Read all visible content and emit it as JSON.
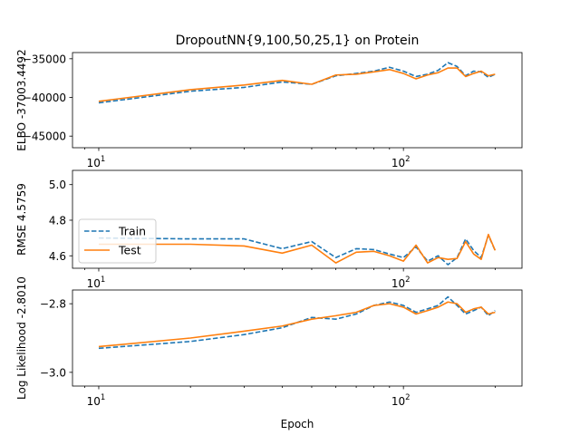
{
  "chart_data": {
    "type": "line",
    "title": "DropoutNN{9,100,50,25,1} on Protein",
    "xlabel": "Epoch",
    "xscale": "log",
    "xlim": [
      8.2,
      245
    ],
    "xticks": [
      {
        "value": 10,
        "base": "10",
        "exp": "1"
      },
      {
        "value": 100,
        "base": "10",
        "exp": "2"
      }
    ],
    "legend": {
      "location": "lower-left",
      "panel": 1,
      "entries": [
        "Train",
        "Test"
      ]
    },
    "series_styles": [
      {
        "name": "Train",
        "color": "#1f77b4",
        "dash": "dashed"
      },
      {
        "name": "Test",
        "color": "#ff7f0e",
        "dash": "solid"
      }
    ],
    "panels": [
      {
        "ylabel": "ELBO -37003.4492",
        "ylim": [
          -46500,
          -34200
        ],
        "yticks": [
          {
            "value": -35000,
            "label": "−35000"
          },
          {
            "value": -40000,
            "label": "−40000"
          },
          {
            "value": -45000,
            "label": "−45000"
          }
        ],
        "x": [
          10,
          20,
          30,
          40,
          50,
          60,
          70,
          80,
          90,
          100,
          110,
          120,
          130,
          140,
          150,
          160,
          170,
          180,
          190,
          200
        ],
        "series": [
          {
            "name": "Train",
            "values": [
              -40700,
              -39200,
              -38700,
              -38000,
              -38300,
              -37200,
              -36900,
              -36600,
              -36100,
              -36600,
              -37300,
              -37000,
              -36500,
              -35500,
              -36000,
              -37200,
              -36600,
              -36700,
              -37400,
              -37000
            ]
          },
          {
            "name": "Test",
            "values": [
              -40500,
              -39000,
              -38400,
              -37800,
              -38300,
              -37100,
              -37000,
              -36700,
              -36400,
              -36900,
              -37600,
              -37100,
              -36800,
              -36200,
              -36200,
              -37300,
              -36900,
              -36600,
              -37200,
              -37000
            ]
          }
        ]
      },
      {
        "ylabel": "RMSE 4.5759",
        "ylim": [
          4.53,
          5.08
        ],
        "yticks": [
          {
            "value": 5.0,
            "label": "5.0"
          },
          {
            "value": 4.8,
            "label": "4.8"
          },
          {
            "value": 4.6,
            "label": "4.6"
          }
        ],
        "x": [
          10,
          20,
          30,
          40,
          50,
          60,
          70,
          80,
          90,
          100,
          110,
          120,
          130,
          140,
          150,
          160,
          170,
          180,
          190,
          200
        ],
        "series": [
          {
            "name": "Train",
            "values": [
              4.7,
              4.695,
              4.695,
              4.64,
              4.68,
              4.59,
              4.64,
              4.635,
              4.61,
              4.59,
              4.65,
              4.57,
              4.6,
              4.55,
              4.59,
              4.695,
              4.63,
              4.59,
              4.715,
              4.63
            ]
          },
          {
            "name": "Test",
            "values": [
              4.665,
              4.665,
              4.655,
              4.615,
              4.66,
              4.56,
              4.62,
              4.625,
              4.6,
              4.57,
              4.66,
              4.56,
              4.59,
              4.58,
              4.585,
              4.68,
              4.61,
              4.58,
              4.72,
              4.63
            ]
          }
        ]
      },
      {
        "ylabel": "Log Likelihood -2.8010",
        "ylim": [
          -3.04,
          -2.76
        ],
        "yticks": [
          {
            "value": -2.8,
            "label": "−2.8"
          },
          {
            "value": -3.0,
            "label": "−3.0"
          }
        ],
        "x": [
          10,
          20,
          30,
          40,
          50,
          60,
          70,
          80,
          90,
          100,
          110,
          120,
          130,
          140,
          150,
          160,
          170,
          180,
          190,
          200
        ],
        "series": [
          {
            "name": "Train",
            "values": [
              -2.93,
              -2.91,
              -2.89,
              -2.87,
              -2.84,
              -2.845,
              -2.83,
              -2.805,
              -2.795,
              -2.805,
              -2.825,
              -2.815,
              -2.805,
              -2.78,
              -2.805,
              -2.83,
              -2.82,
              -2.81,
              -2.835,
              -2.82
            ]
          },
          {
            "name": "Test",
            "values": [
              -2.925,
              -2.9,
              -2.88,
              -2.865,
              -2.845,
              -2.835,
              -2.825,
              -2.805,
              -2.8,
              -2.81,
              -2.83,
              -2.82,
              -2.81,
              -2.795,
              -2.8,
              -2.825,
              -2.815,
              -2.81,
              -2.83,
              -2.825
            ]
          }
        ]
      }
    ]
  }
}
